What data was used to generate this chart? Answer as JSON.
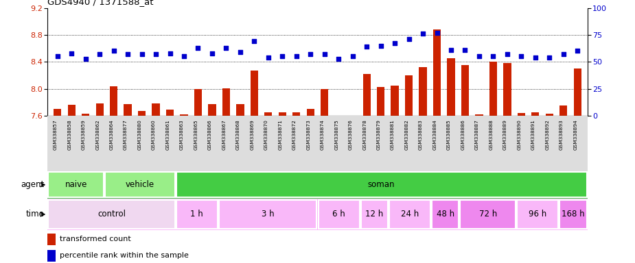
{
  "title": "GDS4940 / 1371588_at",
  "samples": [
    "GSM338857",
    "GSM338858",
    "GSM338859",
    "GSM338862",
    "GSM338864",
    "GSM338877",
    "GSM338880",
    "GSM338860",
    "GSM338861",
    "GSM338863",
    "GSM338865",
    "GSM338866",
    "GSM338867",
    "GSM338868",
    "GSM338869",
    "GSM338870",
    "GSM338871",
    "GSM338872",
    "GSM338873",
    "GSM338874",
    "GSM338875",
    "GSM338876",
    "GSM338878",
    "GSM338879",
    "GSM338881",
    "GSM338882",
    "GSM338883",
    "GSM338884",
    "GSM338885",
    "GSM338886",
    "GSM338887",
    "GSM338888",
    "GSM338889",
    "GSM338890",
    "GSM338891",
    "GSM338892",
    "GSM338893",
    "GSM338894"
  ],
  "transformed_count": [
    7.7,
    7.76,
    7.63,
    7.78,
    8.04,
    7.77,
    7.67,
    7.78,
    7.69,
    7.62,
    8.0,
    7.77,
    8.01,
    7.77,
    8.27,
    7.65,
    7.65,
    7.65,
    7.7,
    8.0,
    7.6,
    7.6,
    8.22,
    8.03,
    8.05,
    8.2,
    8.32,
    8.88,
    8.45,
    8.35,
    7.62,
    8.4,
    8.38,
    7.64,
    7.65,
    7.63,
    7.75,
    8.3
  ],
  "percentile_rank": [
    55,
    58,
    53,
    57,
    60,
    57,
    57,
    57,
    58,
    55,
    63,
    58,
    63,
    59,
    69,
    54,
    55,
    55,
    57,
    57,
    53,
    55,
    64,
    65,
    67,
    71,
    76,
    77,
    61,
    61,
    55,
    55,
    57,
    55,
    54,
    54,
    57,
    60
  ],
  "ylim_left": [
    7.6,
    9.2
  ],
  "ylim_right": [
    0,
    100
  ],
  "yticks_left": [
    7.6,
    8.0,
    8.4,
    8.8,
    9.2
  ],
  "yticks_right": [
    0,
    25,
    50,
    75,
    100
  ],
  "bar_color": "#cc2200",
  "dot_color": "#0000cc",
  "xticklabel_bg": "#dddddd",
  "agent_blocks": [
    {
      "label": "naive",
      "start": 0,
      "end": 4,
      "color": "#99ee88"
    },
    {
      "label": "vehicle",
      "start": 4,
      "end": 9,
      "color": "#99ee88"
    },
    {
      "label": "soman",
      "start": 9,
      "end": 38,
      "color": "#44cc44"
    }
  ],
  "time_blocks": [
    {
      "label": "control",
      "start": 0,
      "end": 9,
      "color": "#f0d8f0"
    },
    {
      "label": "1 h",
      "start": 9,
      "end": 12,
      "color": "#f9b8f9"
    },
    {
      "label": "3 h",
      "start": 12,
      "end": 19,
      "color": "#f9b8f9"
    },
    {
      "label": "6 h",
      "start": 19,
      "end": 22,
      "color": "#f9b8f9"
    },
    {
      "label": "12 h",
      "start": 22,
      "end": 24,
      "color": "#f9b8f9"
    },
    {
      "label": "24 h",
      "start": 24,
      "end": 27,
      "color": "#f9b8f9"
    },
    {
      "label": "48 h",
      "start": 27,
      "end": 29,
      "color": "#ee88ee"
    },
    {
      "label": "72 h",
      "start": 29,
      "end": 33,
      "color": "#ee88ee"
    },
    {
      "label": "96 h",
      "start": 33,
      "end": 36,
      "color": "#f9b8f9"
    },
    {
      "label": "168 h",
      "start": 36,
      "end": 38,
      "color": "#ee88ee"
    }
  ],
  "legend_items": [
    {
      "label": "transformed count",
      "color": "#cc2200"
    },
    {
      "label": "percentile rank within the sample",
      "color": "#0000cc"
    }
  ]
}
